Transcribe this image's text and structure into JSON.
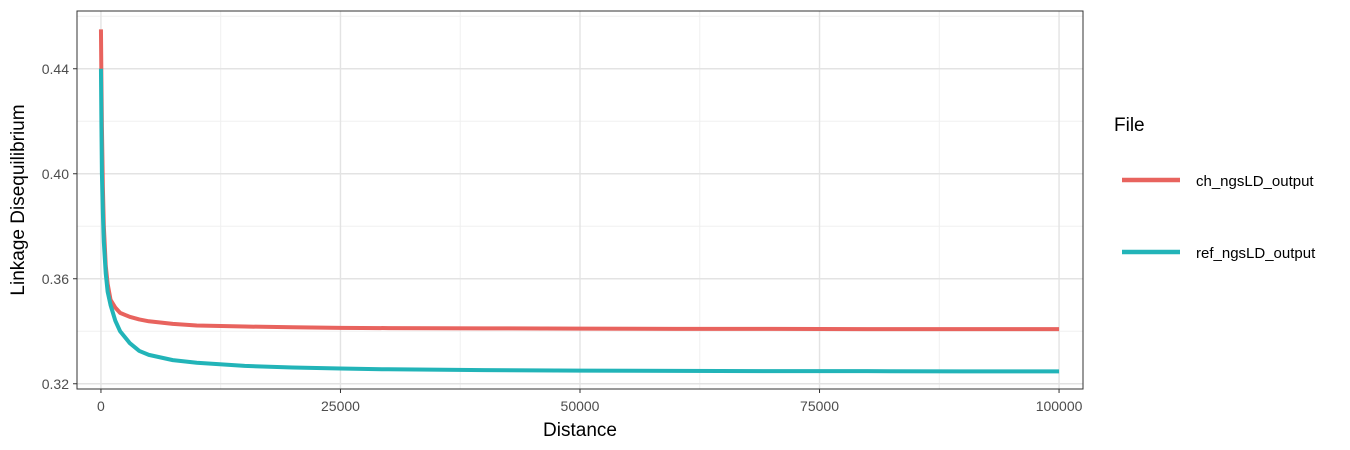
{
  "chart_data": {
    "type": "line",
    "xlabel": "Distance",
    "ylabel": "Linkage Disequilibrium",
    "xlim": [
      -2500,
      102500
    ],
    "ylim": [
      0.318,
      0.462
    ],
    "x_ticks": [
      0,
      25000,
      50000,
      75000,
      100000
    ],
    "x_tick_labels": [
      "0",
      "25000",
      "50000",
      "75000",
      "100000"
    ],
    "y_ticks": [
      0.32,
      0.36,
      0.4,
      0.44
    ],
    "y_tick_labels": [
      "0.32",
      "0.36",
      "0.40",
      "0.44"
    ],
    "grid": true,
    "legend": {
      "title": "File",
      "position": "right"
    },
    "series": [
      {
        "name": "ch_ngsLD_output",
        "color": "#E8635E",
        "x": [
          0,
          50,
          100,
          200,
          300,
          500,
          700,
          1000,
          1500,
          2000,
          3000,
          4000,
          5000,
          7500,
          10000,
          15000,
          20000,
          25000,
          30000,
          40000,
          50000,
          60000,
          70000,
          80000,
          90000,
          100000
        ],
        "y": [
          0.455,
          0.435,
          0.418,
          0.395,
          0.38,
          0.365,
          0.358,
          0.352,
          0.349,
          0.347,
          0.3455,
          0.3445,
          0.3438,
          0.3428,
          0.3422,
          0.3418,
          0.3415,
          0.3413,
          0.3412,
          0.3411,
          0.341,
          0.3409,
          0.3409,
          0.3408,
          0.3408,
          0.3408
        ]
      },
      {
        "name": "ref_ngsLD_output",
        "color": "#22B4B8",
        "x": [
          0,
          50,
          100,
          200,
          300,
          500,
          700,
          1000,
          1500,
          2000,
          3000,
          4000,
          5000,
          7500,
          10000,
          15000,
          20000,
          25000,
          30000,
          40000,
          50000,
          60000,
          70000,
          80000,
          90000,
          100000
        ],
        "y": [
          0.44,
          0.418,
          0.4,
          0.385,
          0.374,
          0.362,
          0.355,
          0.35,
          0.344,
          0.34,
          0.3355,
          0.3325,
          0.331,
          0.329,
          0.328,
          0.3268,
          0.3262,
          0.3258,
          0.3255,
          0.3252,
          0.325,
          0.3249,
          0.3248,
          0.3248,
          0.3247,
          0.3247
        ]
      }
    ]
  }
}
